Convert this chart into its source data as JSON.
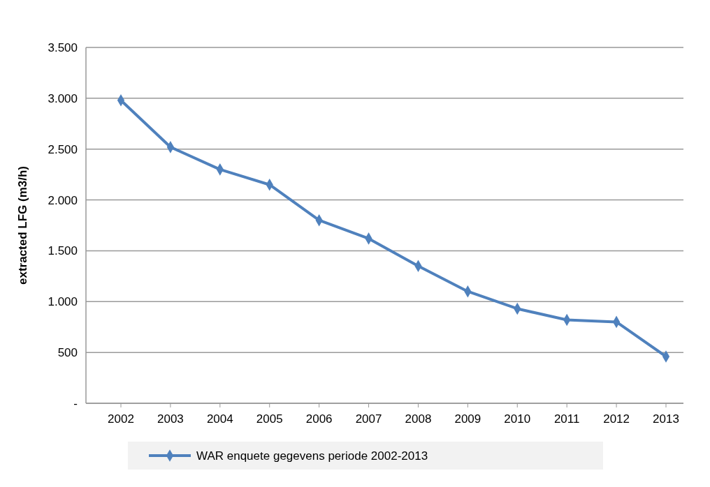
{
  "chart_data": {
    "type": "line",
    "ylabel": "extracted LFG (m3/h)",
    "categories": [
      "2002",
      "2003",
      "2004",
      "2005",
      "2006",
      "2007",
      "2008",
      "2009",
      "2010",
      "2011",
      "2012",
      "2013"
    ],
    "series": [
      {
        "name": "WAR enquete gegevens periode 2002-2013",
        "color": "#4f81bd",
        "values": [
          2980,
          2520,
          2300,
          2150,
          1800,
          1620,
          1350,
          1100,
          930,
          820,
          800,
          460
        ]
      }
    ],
    "ylim": [
      0,
      3500
    ],
    "yticks": [
      {
        "value": 0,
        "label": "-"
      },
      {
        "value": 500,
        "label": "500"
      },
      {
        "value": 1000,
        "label": "1.000"
      },
      {
        "value": 1500,
        "label": "1.500"
      },
      {
        "value": 2000,
        "label": "2.000"
      },
      {
        "value": 2500,
        "label": "2.500"
      },
      {
        "value": 3000,
        "label": "3.000"
      },
      {
        "value": 3500,
        "label": "3.500"
      }
    ],
    "grid": "y",
    "legend": "bottom",
    "marker": "diamond",
    "line_style": "solid"
  }
}
